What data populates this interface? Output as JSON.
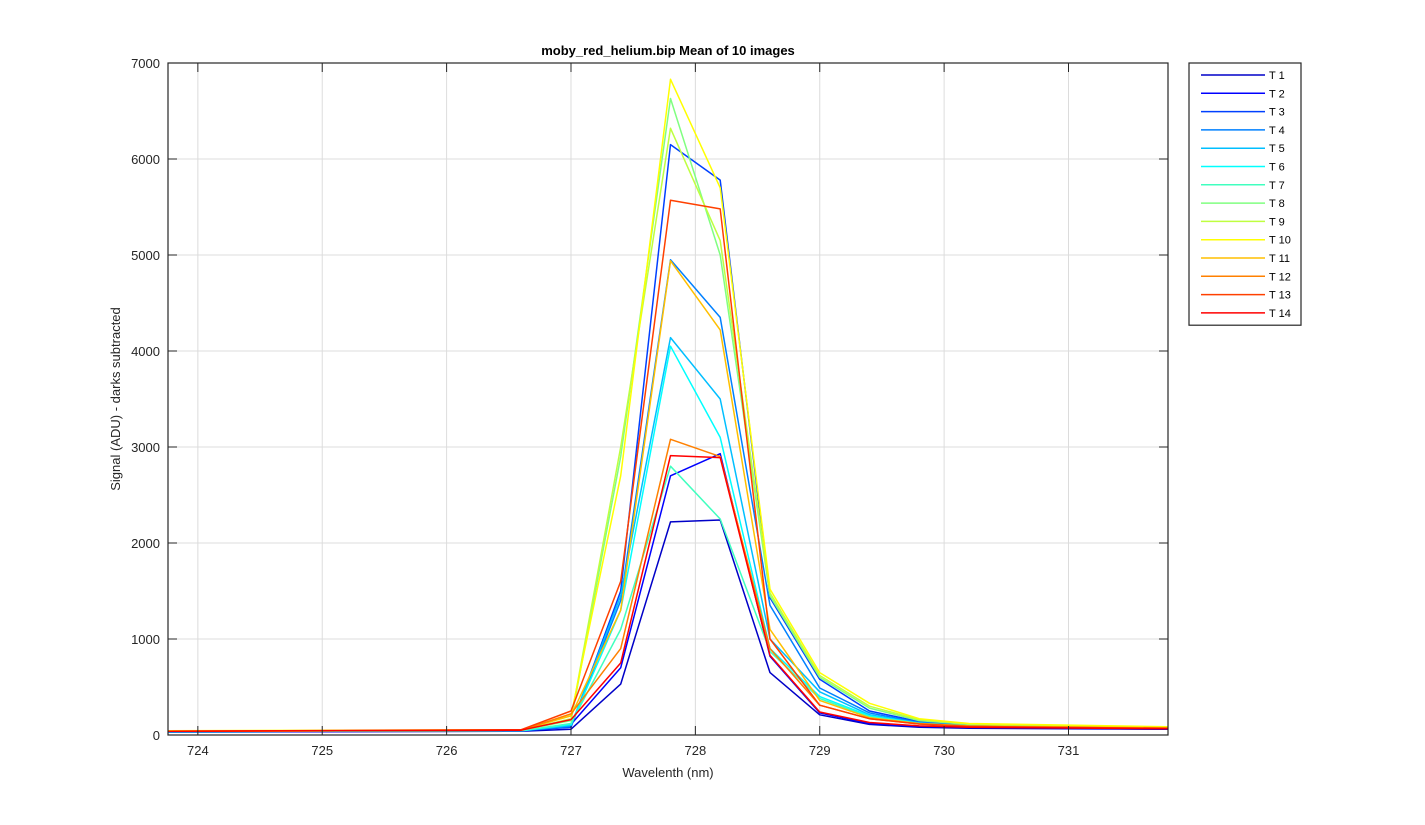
{
  "chart_data": {
    "type": "line",
    "title": "moby_red_helium.bip  Mean of 10 images",
    "xlabel": "Wavelenth (nm)",
    "ylabel": "Signal (ADU) - darks subtracted",
    "xlim": [
      723.76,
      731.8
    ],
    "ylim": [
      0,
      7000
    ],
    "xticks": [
      724,
      725,
      726,
      727,
      728,
      729,
      730,
      731
    ],
    "yticks": [
      0,
      1000,
      2000,
      3000,
      4000,
      5000,
      6000,
      7000
    ],
    "grid": true,
    "legend_position": "outside-top-right",
    "x": [
      723.76,
      726.6,
      727.0,
      727.4,
      727.8,
      728.2,
      728.6,
      729.0,
      729.4,
      729.8,
      730.2,
      731.8
    ],
    "series": [
      {
        "name": "T 1",
        "color": "#0000C8",
        "values": [
          30,
          40,
          60,
          530,
          2220,
          2240,
          650,
          210,
          110,
          80,
          70,
          60
        ]
      },
      {
        "name": "T 2",
        "color": "#0000FF",
        "values": [
          30,
          40,
          110,
          700,
          2700,
          2930,
          820,
          230,
          120,
          90,
          80,
          60
        ]
      },
      {
        "name": "T 3",
        "color": "#0040FF",
        "values": [
          35,
          45,
          80,
          1500,
          6150,
          5780,
          1430,
          580,
          250,
          140,
          100,
          70
        ]
      },
      {
        "name": "T 4",
        "color": "#0080FF",
        "values": [
          35,
          45,
          90,
          1400,
          4950,
          4350,
          1350,
          490,
          230,
          130,
          95,
          70
        ]
      },
      {
        "name": "T 5",
        "color": "#00BFFF",
        "values": [
          35,
          45,
          100,
          1450,
          4140,
          3500,
          1000,
          450,
          210,
          125,
          95,
          70
        ]
      },
      {
        "name": "T 6",
        "color": "#00FFFF",
        "values": [
          35,
          45,
          110,
          1300,
          4050,
          3100,
          900,
          400,
          200,
          120,
          90,
          70
        ]
      },
      {
        "name": "T 7",
        "color": "#40FFBF",
        "values": [
          35,
          45,
          120,
          1100,
          2800,
          2250,
          870,
          380,
          190,
          120,
          90,
          70
        ]
      },
      {
        "name": "T 8",
        "color": "#80FF80",
        "values": [
          40,
          50,
          150,
          2900,
          6630,
          5000,
          1450,
          600,
          280,
          150,
          110,
          80
        ]
      },
      {
        "name": "T 9",
        "color": "#BFFF40",
        "values": [
          40,
          50,
          170,
          3000,
          6320,
          5150,
          1480,
          620,
          300,
          160,
          115,
          80
        ]
      },
      {
        "name": "T 10",
        "color": "#FFFF00",
        "values": [
          45,
          55,
          200,
          2700,
          6830,
          5700,
          1520,
          650,
          330,
          170,
          120,
          85
        ]
      },
      {
        "name": "T 11",
        "color": "#FFBF00",
        "values": [
          40,
          50,
          200,
          1300,
          4940,
          4220,
          1100,
          360,
          180,
          120,
          95,
          75
        ]
      },
      {
        "name": "T 12",
        "color": "#FF8000",
        "values": [
          40,
          50,
          220,
          900,
          3080,
          2900,
          900,
          310,
          170,
          115,
          90,
          70
        ]
      },
      {
        "name": "T 13",
        "color": "#FF4000",
        "values": [
          40,
          55,
          250,
          1600,
          5570,
          5480,
          1000,
          310,
          170,
          115,
          90,
          70
        ]
      },
      {
        "name": "T 14",
        "color": "#FF0000",
        "values": [
          40,
          50,
          160,
          750,
          2910,
          2890,
          830,
          240,
          130,
          95,
          80,
          65
        ]
      }
    ]
  }
}
